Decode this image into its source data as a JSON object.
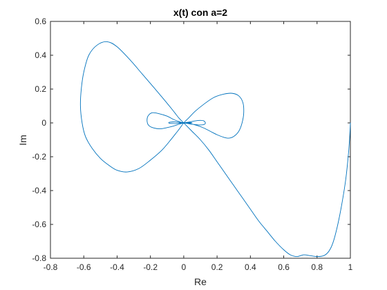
{
  "chart_data": {
    "type": "line",
    "title": "x(t) con a=2",
    "xlabel": "Re",
    "ylabel": "Im",
    "xlim": [
      -0.8,
      1
    ],
    "ylim": [
      -0.8,
      0.6
    ],
    "xticks": [
      -0.8,
      -0.6,
      -0.4,
      -0.2,
      0,
      0.2,
      0.4,
      0.6,
      0.8,
      1
    ],
    "yticks": [
      -0.8,
      -0.6,
      -0.4,
      -0.2,
      0,
      0.2,
      0.4,
      0.6
    ],
    "xtick_labels": [
      "-0.8",
      "-0.6",
      "-0.4",
      "-0.2",
      "0",
      "0.2",
      "0.4",
      "0.6",
      "0.8",
      "1"
    ],
    "ytick_labels": [
      "-0.8",
      "-0.6",
      "-0.4",
      "-0.2",
      "0",
      "0.2",
      "0.4",
      "0.6"
    ],
    "grid": false,
    "series": [
      {
        "color": "#0072bd",
        "x": [
          1.0,
          0.995,
          0.985,
          0.97,
          0.945,
          0.92,
          0.895,
          0.87,
          0.84,
          0.8,
          0.76,
          0.72,
          0.68,
          0.64,
          0.6,
          0.55,
          0.5,
          0.45,
          0.4,
          0.35,
          0.3,
          0.25,
          0.2,
          0.15,
          0.1,
          0.05,
          0.02,
          0.0,
          -0.03,
          -0.07,
          -0.12,
          -0.18,
          -0.25,
          -0.32,
          -0.4,
          -0.46,
          -0.52,
          -0.57,
          -0.6,
          -0.615,
          -0.62,
          -0.61,
          -0.59,
          -0.55,
          -0.5,
          -0.45,
          -0.4,
          -0.34,
          -0.27,
          -0.2,
          -0.13,
          -0.07,
          -0.03,
          0.0,
          0.03,
          0.07,
          0.12,
          0.18,
          0.24,
          0.29,
          0.33,
          0.355,
          0.36,
          0.35,
          0.33,
          0.3,
          0.27,
          0.24,
          0.2,
          0.16,
          0.12,
          0.08,
          0.04,
          0.02,
          0.0,
          -0.02,
          -0.06,
          -0.1,
          -0.15,
          -0.19,
          -0.215,
          -0.22,
          -0.21,
          -0.18,
          -0.14,
          -0.1,
          -0.06,
          -0.03,
          -0.01,
          0.0,
          0.03,
          0.07,
          0.1,
          0.12,
          0.13,
          0.12,
          0.09,
          0.05,
          0.02,
          0.0,
          -0.02,
          -0.05,
          -0.08,
          -0.09,
          -0.085,
          -0.06,
          -0.04,
          -0.02,
          0.0,
          0.02,
          0.04,
          0.05,
          0.045,
          0.03,
          0.01,
          0.0,
          -0.015,
          -0.025,
          -0.02,
          -0.01,
          0.0
        ],
        "y": [
          0.0,
          -0.1,
          -0.22,
          -0.35,
          -0.5,
          -0.62,
          -0.71,
          -0.76,
          -0.785,
          -0.79,
          -0.785,
          -0.78,
          -0.79,
          -0.78,
          -0.75,
          -0.7,
          -0.64,
          -0.58,
          -0.51,
          -0.44,
          -0.37,
          -0.3,
          -0.23,
          -0.16,
          -0.1,
          -0.05,
          -0.02,
          0.0,
          0.03,
          0.08,
          0.14,
          0.21,
          0.29,
          0.37,
          0.45,
          0.48,
          0.46,
          0.4,
          0.3,
          0.2,
          0.1,
          0.0,
          -0.08,
          -0.15,
          -0.21,
          -0.25,
          -0.28,
          -0.29,
          -0.27,
          -0.22,
          -0.16,
          -0.09,
          -0.04,
          0.0,
          0.03,
          0.07,
          0.11,
          0.15,
          0.17,
          0.175,
          0.16,
          0.12,
          0.06,
          0.0,
          -0.05,
          -0.08,
          -0.09,
          -0.085,
          -0.07,
          -0.05,
          -0.03,
          -0.015,
          -0.005,
          -0.002,
          0.0,
          0.005,
          0.02,
          0.04,
          0.055,
          0.06,
          0.04,
          0.01,
          -0.015,
          -0.03,
          -0.035,
          -0.028,
          -0.018,
          -0.008,
          -0.003,
          0.0,
          0.005,
          0.012,
          0.015,
          0.012,
          0.0,
          -0.01,
          -0.012,
          -0.008,
          -0.003,
          0.0,
          0.003,
          0.006,
          0.005,
          0.002,
          -0.002,
          -0.004,
          -0.003,
          -0.001,
          0.0,
          0.001,
          0.002,
          0.001,
          0.0,
          -0.001,
          -0.001,
          0.0,
          0.001,
          0.001,
          0.0,
          0.0,
          0.0
        ]
      }
    ]
  }
}
